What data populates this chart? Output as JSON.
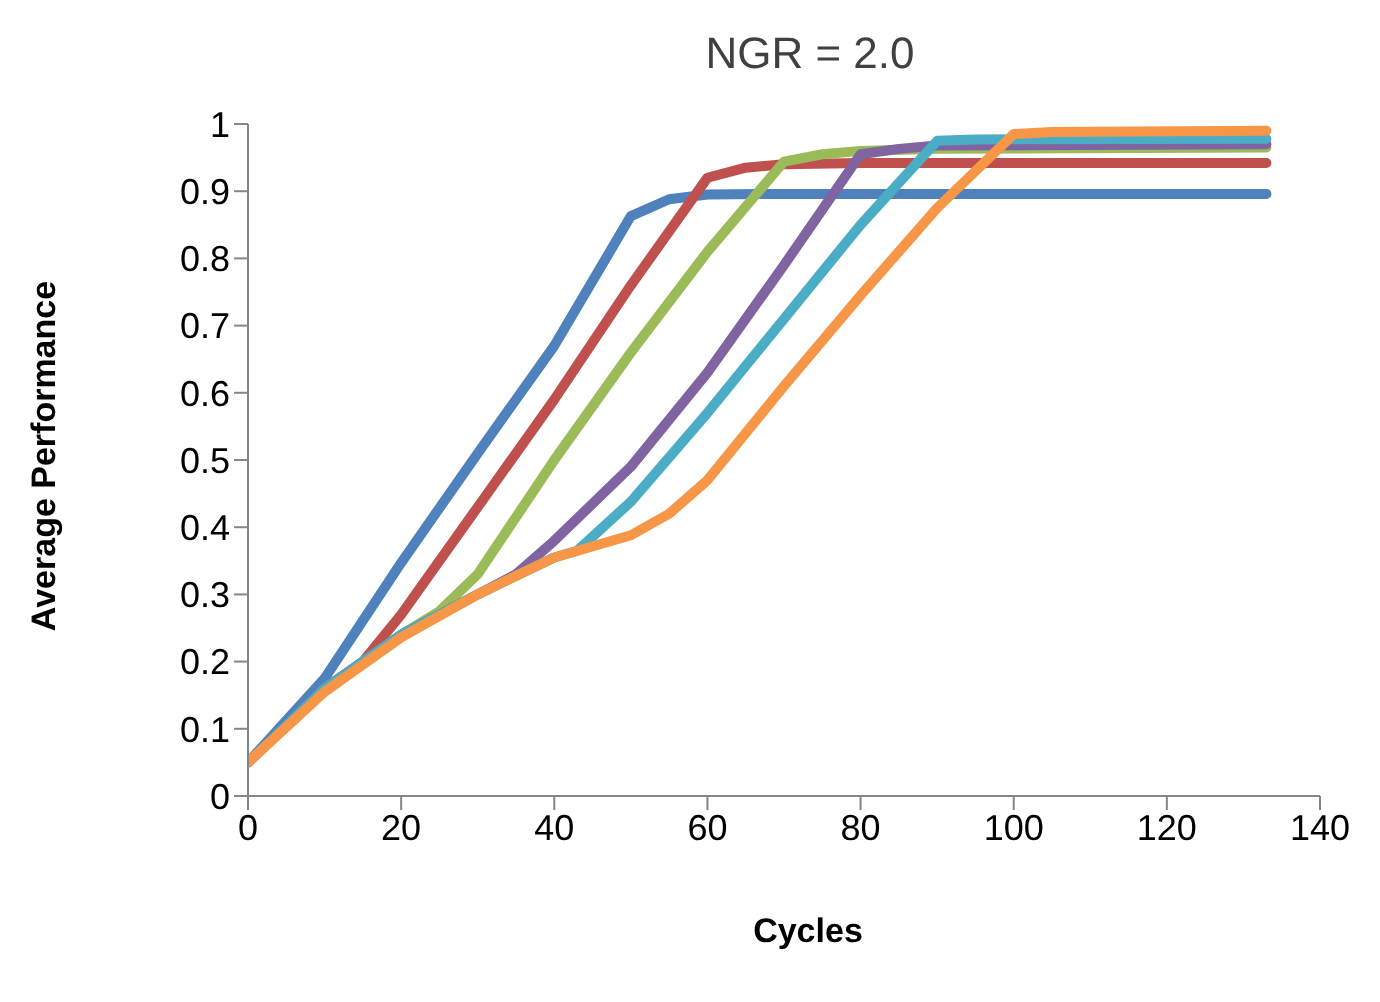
{
  "chart_data": {
    "type": "line",
    "title": "NGR = 2.0",
    "xlabel": "Cycles",
    "ylabel": "Average Performance",
    "xlim": [
      0,
      140
    ],
    "xticks": [
      0,
      20,
      40,
      60,
      80,
      100,
      120,
      140
    ],
    "ylim": [
      0,
      1
    ],
    "yticks": [
      0,
      0.1,
      0.2,
      0.3,
      0.4,
      0.5,
      0.6,
      0.7,
      0.8,
      0.9,
      1
    ],
    "marker": "none",
    "line_style": "solid",
    "series": [
      {
        "color": "#4f81bd",
        "x": [
          0,
          10,
          20,
          30,
          40,
          50,
          55,
          60,
          70,
          133
        ],
        "values": [
          0.05,
          0.175,
          0.347,
          0.51,
          0.67,
          0.863,
          0.888,
          0.895,
          0.896,
          0.896
        ]
      },
      {
        "color": "#c0504d",
        "x": [
          0,
          10,
          15,
          20,
          30,
          40,
          50,
          60,
          65,
          70,
          80,
          133
        ],
        "values": [
          0.05,
          0.16,
          0.2,
          0.27,
          0.43,
          0.59,
          0.76,
          0.92,
          0.935,
          0.94,
          0.942,
          0.942
        ]
      },
      {
        "color": "#9bbb59",
        "x": [
          0,
          10,
          20,
          25,
          30,
          40,
          50,
          60,
          70,
          75,
          80,
          90,
          133
        ],
        "values": [
          0.05,
          0.16,
          0.24,
          0.275,
          0.33,
          0.5,
          0.66,
          0.81,
          0.944,
          0.955,
          0.96,
          0.963,
          0.965
        ]
      },
      {
        "color": "#8064a2",
        "x": [
          0,
          10,
          20,
          30,
          35,
          40,
          50,
          60,
          70,
          80,
          85,
          90,
          133
        ],
        "values": [
          0.05,
          0.16,
          0.24,
          0.3,
          0.33,
          0.38,
          0.49,
          0.63,
          0.79,
          0.955,
          0.963,
          0.968,
          0.97
        ]
      },
      {
        "color": "#4bacc6",
        "x": [
          0,
          10,
          20,
          30,
          40,
          43,
          50,
          60,
          70,
          80,
          90,
          95,
          133
        ],
        "values": [
          0.05,
          0.16,
          0.24,
          0.3,
          0.355,
          0.365,
          0.438,
          0.57,
          0.71,
          0.85,
          0.975,
          0.977,
          0.978
        ]
      },
      {
        "color": "#f79646",
        "x": [
          0,
          10,
          20,
          30,
          40,
          50,
          55,
          60,
          70,
          80,
          90,
          100,
          105,
          133
        ],
        "values": [
          0.05,
          0.155,
          0.236,
          0.3,
          0.355,
          0.388,
          0.42,
          0.47,
          0.61,
          0.745,
          0.875,
          0.985,
          0.988,
          0.99
        ]
      }
    ]
  }
}
